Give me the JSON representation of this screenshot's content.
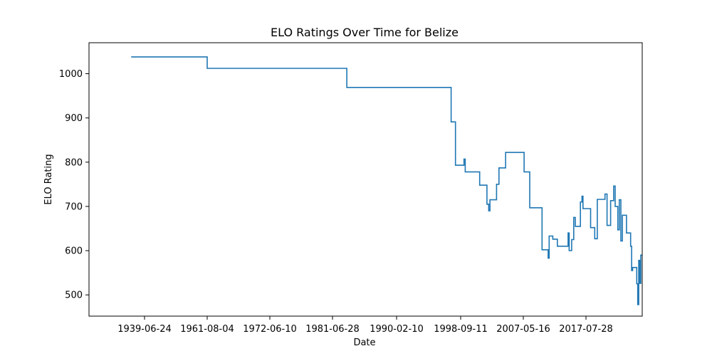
{
  "chart_data": {
    "type": "line",
    "title": "ELO Ratings Over Time for Belize",
    "xlabel": "Date",
    "ylabel": "ELO Rating",
    "x_tick_labels": [
      "1939-06-24",
      "1961-08-04",
      "1972-06-10",
      "1981-06-28",
      "1990-02-10",
      "1998-09-11",
      "2007-05-16",
      "2017-07-28"
    ],
    "y_ticks": [
      500,
      600,
      700,
      800,
      900,
      1000
    ],
    "ylim": [
      452,
      1070
    ],
    "grid": false,
    "series": [
      {
        "color": "#1f77b4",
        "step": true,
        "points": [
          [
            "1934-10-01",
            1038
          ],
          [
            "1961-08-04",
            1038
          ],
          [
            "1961-08-04",
            1012
          ],
          [
            "1983-06-01",
            1012
          ],
          [
            "1983-06-01",
            969
          ],
          [
            "1997-06-01",
            969
          ],
          [
            "1997-06-01",
            891
          ],
          [
            "1998-01-01",
            891
          ],
          [
            "1998-01-01",
            793
          ],
          [
            "1999-03-01",
            793
          ],
          [
            "1999-03-01",
            807
          ],
          [
            "1999-05-01",
            807
          ],
          [
            "1999-05-01",
            778
          ],
          [
            "2001-05-01",
            778
          ],
          [
            "2001-05-01",
            748
          ],
          [
            "2002-05-01",
            748
          ],
          [
            "2002-05-01",
            705
          ],
          [
            "2002-08-01",
            705
          ],
          [
            "2002-08-01",
            690
          ],
          [
            "2002-10-01",
            690
          ],
          [
            "2002-10-01",
            715
          ],
          [
            "2003-09-01",
            715
          ],
          [
            "2003-09-01",
            750
          ],
          [
            "2004-01-01",
            750
          ],
          [
            "2004-01-01",
            787
          ],
          [
            "2004-12-01",
            787
          ],
          [
            "2004-12-01",
            822
          ],
          [
            "2007-07-01",
            822
          ],
          [
            "2007-07-01",
            778
          ],
          [
            "2008-06-01",
            778
          ],
          [
            "2008-06-01",
            697
          ],
          [
            "2010-06-01",
            697
          ],
          [
            "2010-06-01",
            602
          ],
          [
            "2011-06-01",
            602
          ],
          [
            "2011-06-01",
            583
          ],
          [
            "2011-08-01",
            583
          ],
          [
            "2011-08-01",
            633
          ],
          [
            "2012-03-01",
            633
          ],
          [
            "2012-03-01",
            626
          ],
          [
            "2012-12-01",
            626
          ],
          [
            "2012-12-01",
            610
          ],
          [
            "2014-09-01",
            610
          ],
          [
            "2014-09-01",
            640
          ],
          [
            "2014-11-01",
            640
          ],
          [
            "2014-11-01",
            600
          ],
          [
            "2015-04-01",
            600
          ],
          [
            "2015-04-01",
            625
          ],
          [
            "2015-08-01",
            625
          ],
          [
            "2015-08-01",
            675
          ],
          [
            "2015-11-01",
            675
          ],
          [
            "2015-11-01",
            655
          ],
          [
            "2016-09-01",
            655
          ],
          [
            "2016-09-01",
            710
          ],
          [
            "2016-12-01",
            710
          ],
          [
            "2016-12-01",
            723
          ],
          [
            "2017-02-01",
            723
          ],
          [
            "2017-02-01",
            695
          ],
          [
            "2018-05-01",
            695
          ],
          [
            "2018-05-01",
            652
          ],
          [
            "2019-01-01",
            652
          ],
          [
            "2019-01-01",
            627
          ],
          [
            "2019-06-01",
            627
          ],
          [
            "2019-06-01",
            716
          ],
          [
            "2020-09-01",
            716
          ],
          [
            "2020-09-01",
            728
          ],
          [
            "2021-01-01",
            728
          ],
          [
            "2021-01-01",
            657
          ],
          [
            "2021-08-01",
            657
          ],
          [
            "2021-08-01",
            713
          ],
          [
            "2022-02-01",
            713
          ],
          [
            "2022-02-01",
            746
          ],
          [
            "2022-05-01",
            746
          ],
          [
            "2022-05-01",
            700
          ],
          [
            "2022-10-01",
            700
          ],
          [
            "2022-10-01",
            647
          ],
          [
            "2023-01-01",
            647
          ],
          [
            "2023-01-01",
            715
          ],
          [
            "2023-04-01",
            715
          ],
          [
            "2023-04-01",
            622
          ],
          [
            "2023-07-01",
            622
          ],
          [
            "2023-07-01",
            680
          ],
          [
            "2024-03-01",
            680
          ],
          [
            "2024-03-01",
            640
          ],
          [
            "2024-11-01",
            640
          ],
          [
            "2024-11-01",
            610
          ],
          [
            "2025-01-01",
            610
          ],
          [
            "2025-01-01",
            555
          ],
          [
            "2025-03-01",
            555
          ],
          [
            "2025-03-01",
            562
          ],
          [
            "2025-11-01",
            562
          ],
          [
            "2025-11-01",
            525
          ],
          [
            "2026-01-01",
            525
          ],
          [
            "2026-01-01",
            478
          ],
          [
            "2026-03-01",
            478
          ],
          [
            "2026-03-01",
            578
          ],
          [
            "2026-05-01",
            578
          ],
          [
            "2026-05-01",
            526
          ],
          [
            "2026-07-01",
            526
          ],
          [
            "2026-07-01",
            590
          ],
          [
            "2026-09-01",
            590
          ]
        ]
      }
    ]
  }
}
